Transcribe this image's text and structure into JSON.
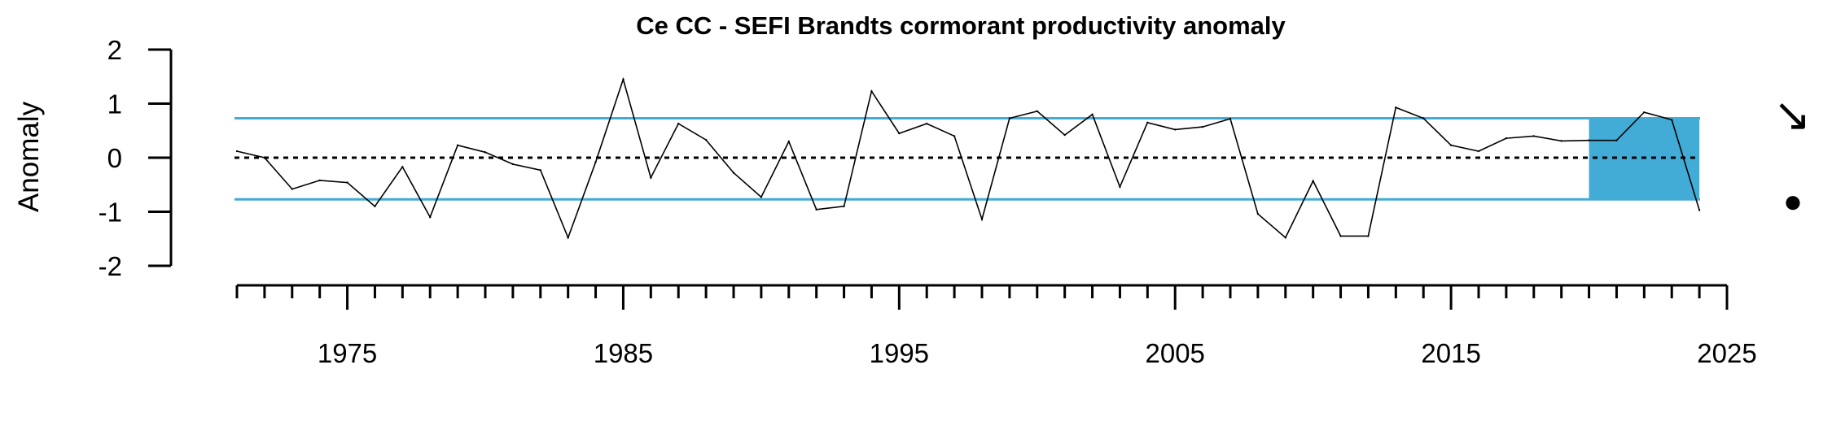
{
  "chart_data": {
    "type": "line",
    "title": "Ce CC - SEFI Brandts cormorant productivity anomaly",
    "xlabel": "",
    "ylabel": "Anomaly",
    "xlim": [
      1971,
      2025
    ],
    "ylim": [
      -2,
      2
    ],
    "x_ticks_major": [
      1975,
      1985,
      1995,
      2005,
      2015,
      2025
    ],
    "y_ticks": [
      2,
      1,
      0,
      -1,
      -2
    ],
    "reference_line": 0,
    "sd_band": [
      -0.77,
      0.73
    ],
    "recent_window": {
      "x_start": 2020,
      "x_end": 2024
    },
    "trend_symbol": "↘",
    "mean_symbol": "●",
    "series": [
      {
        "x": [
          1971,
          1972,
          1973,
          1974,
          1975,
          1976,
          1977,
          1978,
          1979,
          1980,
          1981,
          1982,
          1983,
          1984,
          1985,
          1986,
          1987,
          1988,
          1989,
          1990,
          1991,
          1992,
          1993,
          1994,
          1995,
          1996,
          1997,
          1998,
          1999,
          2000,
          2001,
          2002,
          2003,
          2004,
          2005,
          2006,
          2007,
          2008,
          2009,
          2010,
          2011,
          2012,
          2013,
          2014,
          2015,
          2016,
          2017,
          2018,
          2019,
          2020,
          2021,
          2022,
          2023,
          2024
        ],
        "values": [
          0.12,
          0.0,
          -0.58,
          -0.42,
          -0.46,
          -0.9,
          -0.17,
          -1.1,
          0.23,
          0.1,
          -0.12,
          -0.23,
          -1.48,
          -0.08,
          1.45,
          -0.37,
          0.63,
          0.33,
          -0.28,
          -0.73,
          0.3,
          -0.96,
          -0.9,
          1.23,
          0.45,
          0.63,
          0.4,
          -1.14,
          0.73,
          0.86,
          0.42,
          0.8,
          -0.54,
          0.65,
          0.52,
          0.57,
          0.72,
          -1.04,
          -1.48,
          -0.43,
          -1.45,
          -1.45,
          0.93,
          0.73,
          0.23,
          0.12,
          0.36,
          0.4,
          0.31,
          0.32,
          0.32,
          0.84,
          0.7,
          -0.97
        ]
      }
    ],
    "colors": {
      "line": "#000000",
      "sd_band": "#42ACD6",
      "recent_window": "#42ACD6",
      "zero_line": "#000000"
    }
  }
}
